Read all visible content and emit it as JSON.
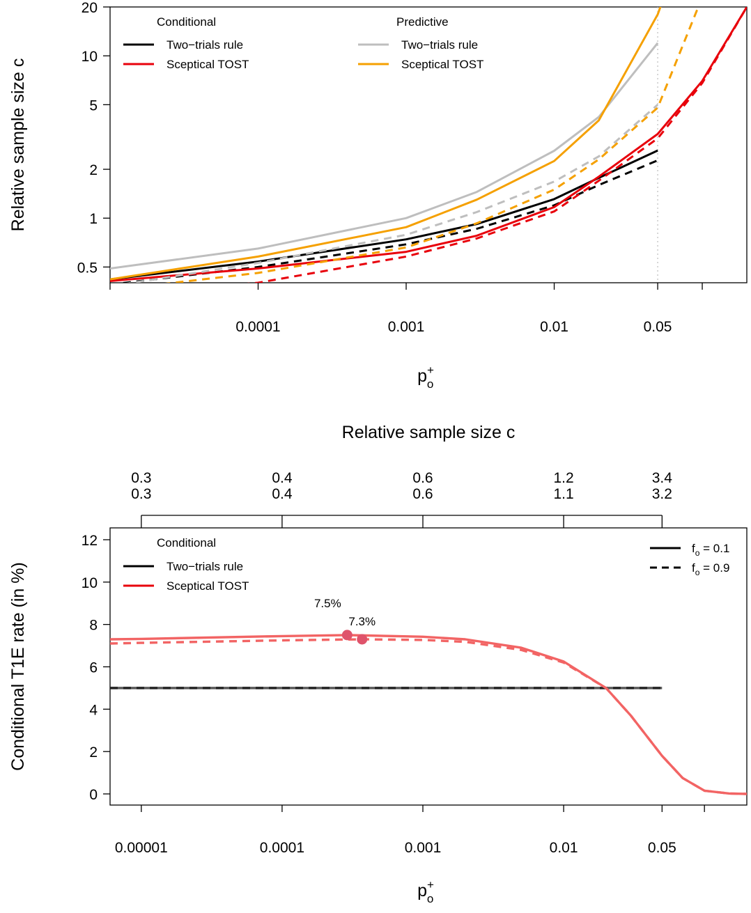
{
  "chart_data": [
    {
      "type": "line",
      "panel": "top",
      "ylabel": "Relative sample size c",
      "xlabel_main": "p",
      "xlabel_sub": "o",
      "xlabel_sup": "+",
      "x_scale": "log",
      "y_scale": "log",
      "xlim": [
        1e-05,
        0.2
      ],
      "ylim": [
        0.4,
        20
      ],
      "x_ticks": [
        1e-05,
        0.0001,
        0.001,
        0.01,
        0.05,
        0.1
      ],
      "x_tick_labels": [
        "",
        "0.0001",
        "0.001",
        "0.01",
        "0.05",
        ""
      ],
      "y_ticks": [
        0.5,
        1,
        2,
        5,
        10,
        20
      ],
      "y_tick_labels": [
        "0.5",
        "1",
        "2",
        "5",
        "10",
        "20"
      ],
      "reference_line_x": 0.05,
      "legend": {
        "groups": [
          {
            "title": "Conditional",
            "entries": [
              {
                "label": "Two−trials rule",
                "color": "#000000"
              },
              {
                "label": "Sceptical TOST",
                "color": "#e8000b"
              }
            ]
          },
          {
            "title": "Predictive",
            "entries": [
              {
                "label": "Two−trials rule",
                "color": "#bebebe"
              },
              {
                "label": "Sceptical TOST",
                "color": "#f5a000"
              }
            ]
          }
        ]
      },
      "series": [
        {
          "name": "Conditional Two−trials rule, f_o = 0.1",
          "color": "#000000",
          "dash": "solid",
          "x": [
            1e-05,
            0.0001,
            0.001,
            0.003,
            0.01,
            0.02,
            0.05
          ],
          "y": [
            0.42,
            0.54,
            0.74,
            0.92,
            1.31,
            1.77,
            2.61
          ]
        },
        {
          "name": "Conditional Two−trials rule, f_o = 0.9",
          "color": "#000000",
          "dash": "dashed",
          "x": [
            1e-05,
            0.0001,
            0.001,
            0.003,
            0.01,
            0.02,
            0.05
          ],
          "y": [
            0.39,
            0.5,
            0.69,
            0.86,
            1.2,
            1.6,
            2.27
          ]
        },
        {
          "name": "Conditional Sceptical TOST, f_o = 0.1",
          "color": "#e8000b",
          "dash": "solid",
          "x": [
            1e-05,
            0.0001,
            0.001,
            0.003,
            0.01,
            0.02,
            0.05,
            0.1,
            0.2
          ],
          "y": [
            0.41,
            0.49,
            0.62,
            0.78,
            1.17,
            1.8,
            3.3,
            7.0,
            20.0
          ]
        },
        {
          "name": "Conditional Sceptical TOST, f_o = 0.9",
          "color": "#e8000b",
          "dash": "dashed",
          "x": [
            1e-05,
            0.0001,
            0.001,
            0.003,
            0.01,
            0.02,
            0.05,
            0.1,
            0.2
          ],
          "y": [
            0.33,
            0.4,
            0.58,
            0.75,
            1.1,
            1.7,
            3.1,
            6.8,
            20.0
          ]
        },
        {
          "name": "Predictive Two−trials rule, f_o = 0.1",
          "color": "#bebebe",
          "dash": "solid",
          "x": [
            1e-05,
            0.0001,
            0.001,
            0.003,
            0.01,
            0.02,
            0.05
          ],
          "y": [
            0.49,
            0.65,
            1.0,
            1.45,
            2.6,
            4.2,
            12.0
          ]
        },
        {
          "name": "Predictive Two−trials rule, f_o = 0.9",
          "color": "#bebebe",
          "dash": "dashed",
          "x": [
            1e-05,
            0.0001,
            0.001,
            0.003,
            0.01,
            0.02,
            0.05
          ],
          "y": [
            0.38,
            0.53,
            0.79,
            1.09,
            1.68,
            2.4,
            5.0
          ]
        },
        {
          "name": "Predictive Sceptical TOST, f_o = 0.1",
          "color": "#f5a000",
          "dash": "solid",
          "x": [
            1e-05,
            0.0001,
            0.001,
            0.003,
            0.01,
            0.02,
            0.05,
            0.055
          ],
          "y": [
            0.42,
            0.58,
            0.88,
            1.3,
            2.25,
            4.0,
            18.0,
            23.0
          ]
        },
        {
          "name": "Predictive Sceptical TOST, f_o = 0.9",
          "color": "#f5a000",
          "dash": "dashed",
          "x": [
            1e-05,
            0.0001,
            0.001,
            0.003,
            0.01,
            0.02,
            0.05,
            0.1
          ],
          "y": [
            0.36,
            0.46,
            0.66,
            0.93,
            1.5,
            2.3,
            4.8,
            23.0
          ]
        }
      ]
    },
    {
      "type": "line",
      "panel": "bottom",
      "ylabel": "Conditional T1E rate (in %)",
      "xlabel_main": "p",
      "xlabel_sub": "o",
      "xlabel_sup": "+",
      "top_axis_title": "Relative sample size c",
      "x_scale": "log",
      "xlim": [
        6e-06,
        0.2
      ],
      "ylim": [
        0,
        12
      ],
      "x_ticks": [
        1e-05,
        0.0001,
        0.001,
        0.01,
        0.05,
        0.1
      ],
      "x_tick_labels": [
        "0.00001",
        "0.0001",
        "0.001",
        "0.01",
        "0.05",
        ""
      ],
      "y_ticks": [
        0,
        2,
        4,
        6,
        8,
        10,
        12
      ],
      "y_tick_labels": [
        "0",
        "2",
        "4",
        "6",
        "8",
        "10",
        "12"
      ],
      "top_ticks": [
        1e-05,
        0.0001,
        0.001,
        0.01,
        0.05
      ],
      "top_tick_labels_row1": [
        "0.3",
        "0.4",
        "0.6",
        "1.2",
        "3.4"
      ],
      "top_tick_labels_row2": [
        "0.3",
        "0.4",
        "0.6",
        "1.1",
        "3.2"
      ],
      "legend_left": {
        "title": "Conditional",
        "entries": [
          {
            "label": "Two−trials rule",
            "color": "#000000"
          },
          {
            "label": "Sceptical TOST",
            "color": "#e8000b"
          }
        ]
      },
      "legend_right": [
        {
          "main": "f",
          "sub": "o",
          "rest": " = 0.1",
          "dash": "solid"
        },
        {
          "main": "f",
          "sub": "o",
          "rest": " = 0.9",
          "dash": "dashed"
        }
      ],
      "annotations": [
        {
          "label": "7.5%",
          "x": 0.00029,
          "y": 7.5
        },
        {
          "label": "7.3%",
          "x": 0.00037,
          "y": 7.3
        }
      ],
      "series": [
        {
          "name": "Two−trials rule, f_o = 0.1",
          "color": "#555555",
          "dash": "solid",
          "x": [
            6e-06,
            0.05
          ],
          "y": [
            5,
            5
          ]
        },
        {
          "name": "Two−trials rule, f_o = 0.9",
          "color": "#222222",
          "dash": "dashed",
          "x": [
            6e-06,
            0.05
          ],
          "y": [
            5,
            5
          ]
        },
        {
          "name": "Sceptical TOST, f_o = 0.1",
          "color": "#f26464",
          "dash": "solid",
          "x": [
            6e-06,
            1e-05,
            0.0001,
            0.00029,
            0.001,
            0.002,
            0.005,
            0.01,
            0.02,
            0.03,
            0.05,
            0.07,
            0.1,
            0.15,
            0.2
          ],
          "y": [
            7.3,
            7.32,
            7.45,
            7.5,
            7.42,
            7.3,
            6.9,
            6.25,
            5.0,
            3.7,
            1.8,
            0.75,
            0.15,
            0.02,
            0.0
          ]
        },
        {
          "name": "Sceptical TOST, f_o = 0.9",
          "color": "#f26464",
          "dash": "dashed",
          "x": [
            6e-06,
            1e-05,
            0.0001,
            0.00037,
            0.001,
            0.002,
            0.005,
            0.01,
            0.02,
            0.03,
            0.05,
            0.07,
            0.1,
            0.15,
            0.2
          ],
          "y": [
            7.1,
            7.13,
            7.25,
            7.3,
            7.27,
            7.18,
            6.8,
            6.2,
            5.0,
            3.7,
            1.8,
            0.75,
            0.15,
            0.02,
            0.0
          ]
        }
      ]
    }
  ]
}
